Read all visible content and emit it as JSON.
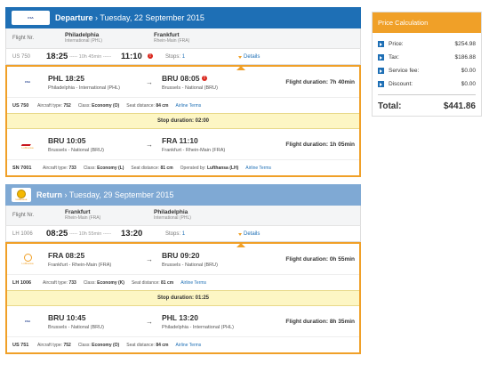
{
  "departure": {
    "header": "Departure",
    "date": " › Tuesday, 22 September 2015",
    "logo_text": "CSA",
    "flight_label": "Flight Nr.",
    "from_city": "Philadelphia",
    "from_airport": "International (PHL)",
    "to_city": "Frankfurt",
    "to_airport": "Rhein-Main (FRA)",
    "summary": {
      "flight_no": "US 750",
      "dep_time": "18:25",
      "duration": "----- 10h 45min -----",
      "arr_time": "11:10",
      "alert": "!",
      "stops_label": "Stops:",
      "stops_value": "1",
      "details": "Details"
    },
    "segments": [
      {
        "logo": "CSA",
        "dep_time": "PHL 18:25",
        "dep_city": "Philadelphia - International (PHL)",
        "arrow": "→",
        "arr_time": "BRU 08:05",
        "arr_city": "Brussels - National (BRU)",
        "flight_duration": "Flight duration: 7h 40min",
        "flight_no": "US 750",
        "aircraft_label": "Aircraft type:",
        "aircraft": "752",
        "class_label": "Class:",
        "class": "Economy (O)",
        "seat_label": "Seat distance:",
        "seat": "84 cm",
        "terms": "Airline Terms"
      },
      {
        "logo": "Lufthansa",
        "dep_time": "BRU 10:05",
        "dep_city": "Brussels - National (BRU)",
        "arrow": "→",
        "arr_time": "FRA 11:10",
        "arr_city": "Frankfurt - Rhein-Main (FRA)",
        "flight_duration": "Flight duration: 1h 05min",
        "flight_no": "SN 7001",
        "aircraft_label": "Aircraft type:",
        "aircraft": "733",
        "class_label": "Class:",
        "class": "Economy (L)",
        "seat_label": "Seat distance:",
        "seat": "81 cm",
        "operated_label": "Operated by:",
        "operated": "Lufthansa (LH)",
        "terms": "Airline Terms"
      }
    ],
    "stop_duration": "Stop duration: 02:00"
  },
  "return": {
    "header": "Return",
    "date": " › Tuesday, 29 September 2015",
    "logo_text": "Lufthansa",
    "flight_label": "Flight Nr.",
    "from_city": "Frankfurt",
    "from_airport": "Rhein-Main (FRA)",
    "to_city": "Philadelphia",
    "to_airport": "International (PHL)",
    "summary": {
      "flight_no": "LH 1006",
      "dep_time": "08:25",
      "duration": "----- 10h 55min -----",
      "arr_time": "13:20",
      "stops_label": "Stops:",
      "stops_value": "1",
      "details": "Details"
    },
    "segments": [
      {
        "logo": "Lufthansa",
        "dep_time": "FRA 08:25",
        "dep_city": "Frankfurt - Rhein-Main (FRA)",
        "arrow": "→",
        "arr_time": "BRU 09:20",
        "arr_city": "Brussels - National (BRU)",
        "flight_duration": "Flight duration: 0h 55min",
        "flight_no": "LH 1006",
        "aircraft_label": "Aircraft type:",
        "aircraft": "733",
        "class_label": "Class:",
        "class": "Economy (K)",
        "seat_label": "Seat distance:",
        "seat": "81 cm",
        "terms": "Airline Terms"
      },
      {
        "logo": "CSA",
        "dep_time": "BRU 10:45",
        "dep_city": "Brussels - National (BRU)",
        "arrow": "→",
        "arr_time": "PHL 13:20",
        "arr_city": "Philadelphia - International (PHL)",
        "flight_duration": "Flight duration: 8h 35min",
        "flight_no": "US 751",
        "aircraft_label": "Aircraft type:",
        "aircraft": "752",
        "class_label": "Class:",
        "class": "Economy (O)",
        "seat_label": "Seat distance:",
        "seat": "84 cm",
        "terms": "Airline Terms"
      }
    ],
    "stop_duration": "Stop duration: 01:25"
  },
  "price": {
    "title": "Price Calculation",
    "rows": [
      {
        "label": "Price:",
        "value": "$254.98"
      },
      {
        "label": "Tax:",
        "value": "$186.88"
      },
      {
        "label": "Service fee:",
        "value": "$0.00"
      },
      {
        "label": "Discount:",
        "value": "$0.00"
      }
    ],
    "total_label": "Total:",
    "total_value": "$441.86"
  },
  "colors": {
    "departure_header": "#1e6fb5",
    "return_header": "#7fa9d4",
    "accent_orange": "#f0a028",
    "stop_bg": "#fdf6c4"
  }
}
